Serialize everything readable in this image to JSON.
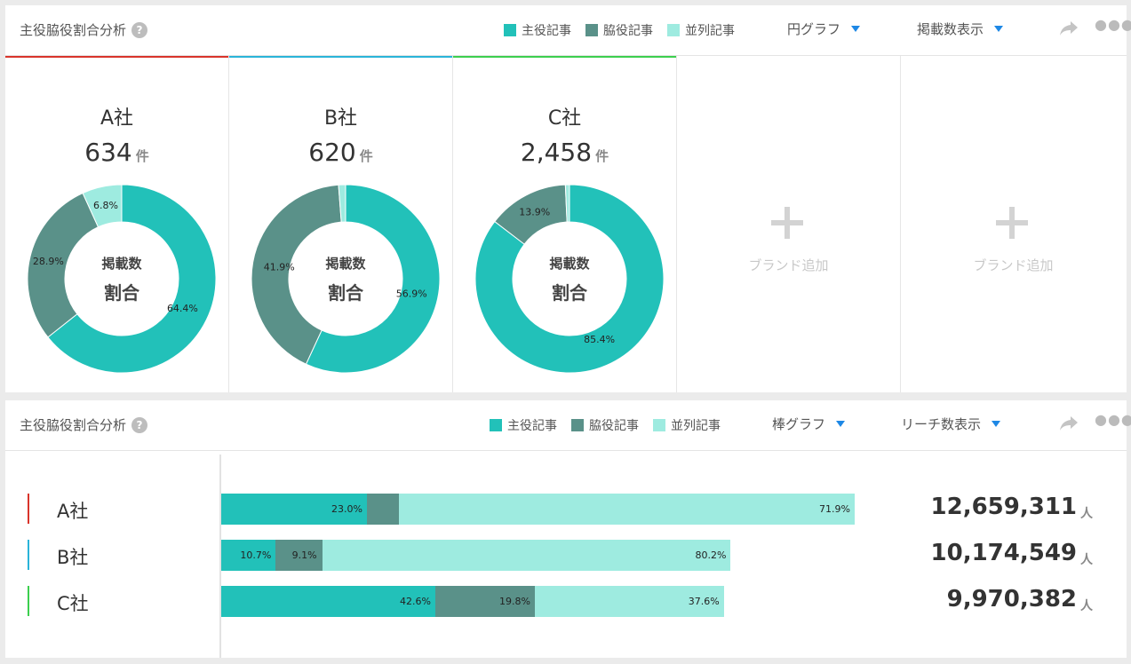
{
  "colors": {
    "main": "#22c1b9",
    "sub": "#5a9189",
    "parallel": "#9eebe0"
  },
  "legend": [
    "主役記事",
    "脇役記事",
    "並列記事"
  ],
  "panel_pie": {
    "title": "主役脇役割合分析",
    "help": "?",
    "dropdown_chart": "円グラフ",
    "dropdown_metric": "掲載数表示",
    "center_top": "掲載数",
    "center_bottom": "割合",
    "companies": [
      {
        "name": "A社",
        "count": "634",
        "unit": "件",
        "accent": "#d9342b",
        "slices": [
          {
            "value": 64.4,
            "label": "64.4%"
          },
          {
            "value": 28.9,
            "label": "28.9%"
          },
          {
            "value": 6.8,
            "label": "6.8%"
          }
        ]
      },
      {
        "name": "B社",
        "count": "620",
        "unit": "件",
        "accent": "#2ab4d9",
        "slices": [
          {
            "value": 56.9,
            "label": "56.9%"
          },
          {
            "value": 41.9,
            "label": "41.9%"
          },
          {
            "value": 1.2,
            "label": ""
          }
        ]
      },
      {
        "name": "C社",
        "count": "2,458",
        "unit": "件",
        "accent": "#3ccf4e",
        "slices": [
          {
            "value": 85.4,
            "label": "85.4%"
          },
          {
            "value": 13.9,
            "label": "13.9%"
          },
          {
            "value": 0.7,
            "label": ""
          }
        ]
      }
    ],
    "add_brand_label": "ブランド追加"
  },
  "panel_bar": {
    "title": "主役脇役割合分析",
    "help": "?",
    "dropdown_chart": "棒グラフ",
    "dropdown_metric": "リーチ数表示",
    "rows": [
      {
        "name": "A社",
        "accent": "#d9342b",
        "value": "12,659,311",
        "unit": "人",
        "segments": [
          {
            "value": 23.0,
            "label": "23.0%"
          },
          {
            "value": 5.1,
            "label": ""
          },
          {
            "value": 71.9,
            "label": "71.9%"
          }
        ]
      },
      {
        "name": "B社",
        "accent": "#2ab4d9",
        "value": "10,174,549",
        "unit": "人",
        "segments": [
          {
            "value": 10.7,
            "label": "10.7%"
          },
          {
            "value": 9.1,
            "label": "9.1%"
          },
          {
            "value": 80.2,
            "label": "80.2%"
          }
        ]
      },
      {
        "name": "C社",
        "accent": "#3ccf4e",
        "value": "9,970,382",
        "unit": "人",
        "segments": [
          {
            "value": 42.6,
            "label": "42.6%"
          },
          {
            "value": 19.8,
            "label": "19.8%"
          },
          {
            "value": 37.6,
            "label": "37.6%"
          }
        ]
      }
    ]
  },
  "chart_data": [
    {
      "type": "pie",
      "title": "A社",
      "categories": [
        "主役記事",
        "脇役記事",
        "並列記事"
      ],
      "values": [
        64.4,
        28.9,
        6.8
      ]
    },
    {
      "type": "pie",
      "title": "B社",
      "categories": [
        "主役記事",
        "脇役記事",
        "並列記事"
      ],
      "values": [
        56.9,
        41.9,
        1.2
      ]
    },
    {
      "type": "pie",
      "title": "C社",
      "categories": [
        "主役記事",
        "脇役記事",
        "並列記事"
      ],
      "values": [
        85.4,
        13.9,
        0.7
      ]
    },
    {
      "type": "bar",
      "categories": [
        "A社",
        "B社",
        "C社"
      ],
      "series": [
        {
          "name": "主役記事",
          "values": [
            23.0,
            10.7,
            42.6
          ]
        },
        {
          "name": "脇役記事",
          "values": [
            5.1,
            9.1,
            19.8
          ]
        },
        {
          "name": "並列記事",
          "values": [
            71.9,
            80.2,
            37.6
          ]
        }
      ],
      "totals": [
        12659311,
        10174549,
        9970382
      ]
    }
  ]
}
